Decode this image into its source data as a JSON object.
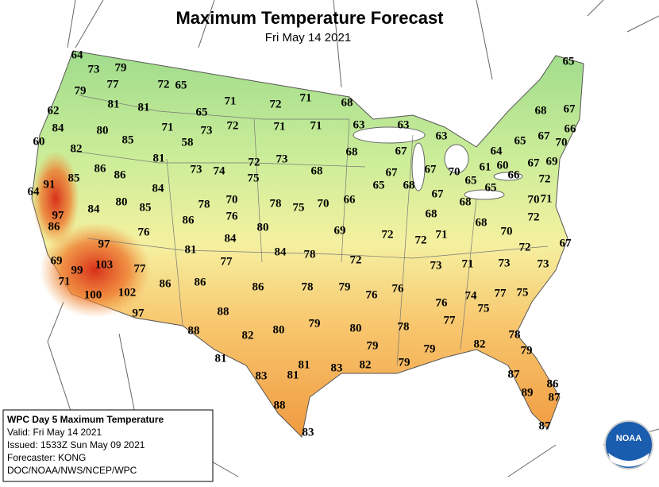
{
  "header": {
    "title": "Maximum Temperature Forecast",
    "subtitle": "Fri May 14 2021"
  },
  "temperatures": [
    64,
    73,
    79,
    79,
    77,
    72,
    65,
    71,
    72,
    71,
    68,
    65,
    62,
    81,
    81,
    65,
    68,
    67,
    84,
    80,
    71,
    73,
    72,
    71,
    71,
    63,
    63,
    63,
    66,
    60,
    85,
    58,
    65,
    67,
    70,
    82,
    81,
    72,
    73,
    68,
    67,
    64,
    86,
    86,
    73,
    74,
    75,
    68,
    67,
    67,
    70,
    65,
    61,
    60,
    67,
    69,
    91,
    85,
    84,
    68,
    65,
    66,
    72,
    64,
    67,
    65,
    70,
    78,
    70,
    78,
    75,
    70,
    66,
    68,
    71,
    97,
    84,
    80,
    85,
    76,
    68,
    68,
    72,
    86,
    86,
    80,
    69,
    72,
    72,
    71,
    70,
    76,
    84,
    97,
    81,
    72,
    67,
    84,
    78,
    72,
    77,
    69,
    103,
    99,
    77,
    73,
    71,
    73,
    73,
    71,
    86,
    86,
    86,
    78,
    79,
    76,
    76,
    77,
    75,
    100,
    102,
    76,
    74,
    75,
    97,
    88,
    79,
    77,
    80,
    80,
    78,
    88,
    82,
    78,
    79,
    79,
    82,
    79,
    81,
    81,
    83,
    82,
    79,
    81,
    83,
    87,
    86,
    89,
    87,
    88,
    87,
    83
  ],
  "info_box": {
    "lines": [
      "WPC Day 5 Maximum Temperature",
      "Valid: Fri May 14 2021",
      "Issued: 1533Z Sun May 09 2021",
      "Forecaster: KONG",
      "DOC/NOAA/NWS/NCEP/WPC"
    ]
  },
  "logo": "NOAA"
}
